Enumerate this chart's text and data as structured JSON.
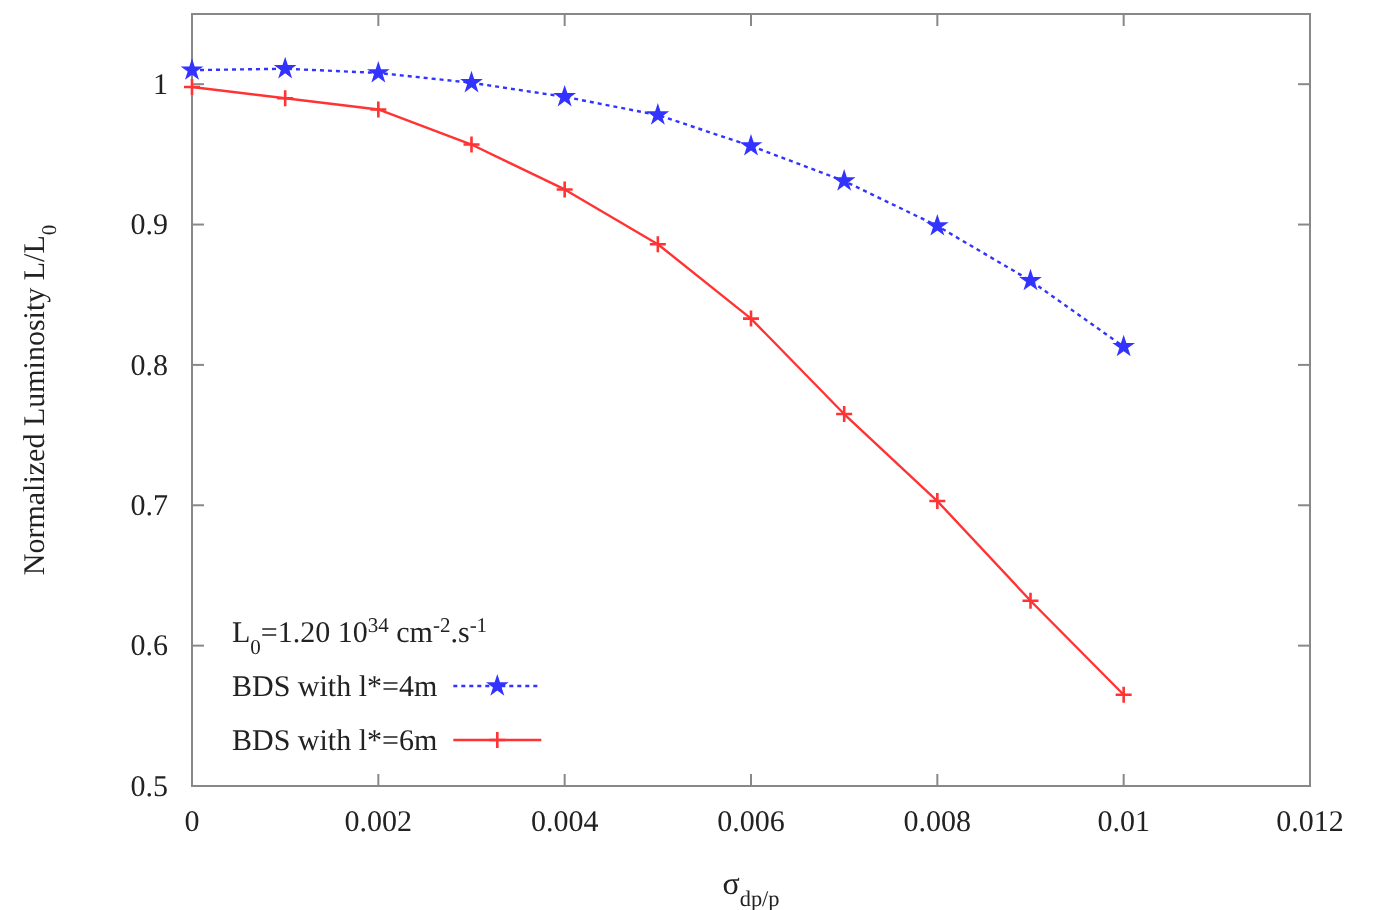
{
  "chart_data": {
    "type": "line",
    "xlabel": "σ$_{dp/p}$",
    "ylabel": "Normalized Luminosity L/L$_{0}$",
    "legend_title": "L$_{0}$=1.20 10$^{34}$ cm$^{-2}$.s$^{-1}$",
    "x": [
      0,
      0.001,
      0.002,
      0.003,
      0.004,
      0.005,
      0.006,
      0.007,
      0.008,
      0.009,
      0.01
    ],
    "series": [
      {
        "name": "BDS with l*=4m",
        "color": "#3333ff",
        "marker": "star",
        "line_style": "dotted",
        "values": [
          1.01,
          1.011,
          1.008,
          1.001,
          0.991,
          0.978,
          0.956,
          0.931,
          0.899,
          0.86,
          0.813
        ]
      },
      {
        "name": "BDS with l*=6m",
        "color": "#ff3333",
        "marker": "cross",
        "line_style": "solid",
        "values": [
          0.998,
          0.99,
          0.982,
          0.957,
          0.925,
          0.886,
          0.833,
          0.765,
          0.703,
          0.632,
          0.565
        ]
      }
    ],
    "xlim": [
      0,
      0.012
    ],
    "xticks": [
      0,
      0.002,
      0.004,
      0.006,
      0.008,
      0.01,
      0.012
    ],
    "ylim": [
      0.5,
      1.05
    ],
    "yticks": [
      0.5,
      0.6,
      0.7,
      0.8,
      0.9,
      1
    ],
    "grid": false,
    "legend": "bottom left"
  }
}
